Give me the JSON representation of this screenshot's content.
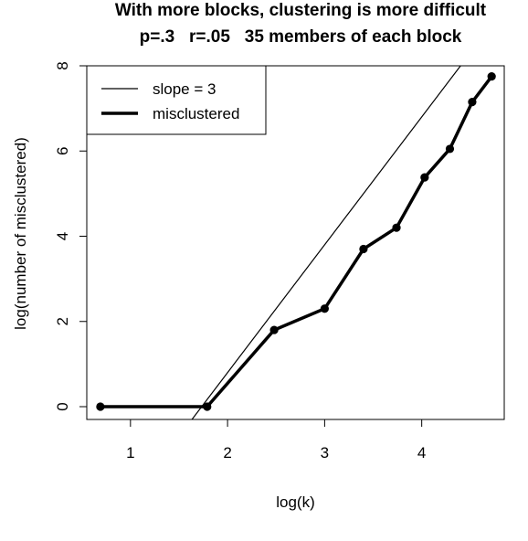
{
  "chart_data": {
    "type": "line",
    "title": "With more blocks, clustering is more difficult",
    "subtitle": "p=.3   r=.05   35 members of each block",
    "xlabel": "log(k)",
    "ylabel": "log(number  of misclustered)",
    "xlim": [
      0.55,
      4.85
    ],
    "ylim": [
      -0.3,
      8.0
    ],
    "x_ticks": [
      1,
      2,
      3,
      4
    ],
    "x_tick_labels": [
      "1",
      "2",
      "3",
      "4"
    ],
    "y_ticks": [
      0,
      2,
      4,
      6,
      8
    ],
    "y_tick_labels": [
      "0",
      "2",
      "4",
      "6",
      "8"
    ],
    "grid": false,
    "legend_position": "top-left",
    "series": [
      {
        "name": "slope = 3",
        "kind": "reference-line",
        "slope": 3,
        "intercept": -5.2,
        "line_width": "thin",
        "color": "#000000"
      },
      {
        "name": "misclustered",
        "kind": "line-with-points",
        "line_width": "thick",
        "color": "#000000",
        "x": [
          0.69,
          1.79,
          2.48,
          3.0,
          3.4,
          3.74,
          4.03,
          4.29,
          4.52,
          4.72
        ],
        "y": [
          0.0,
          0.0,
          1.8,
          2.3,
          3.7,
          4.2,
          5.38,
          6.05,
          7.15,
          7.75
        ]
      }
    ]
  }
}
